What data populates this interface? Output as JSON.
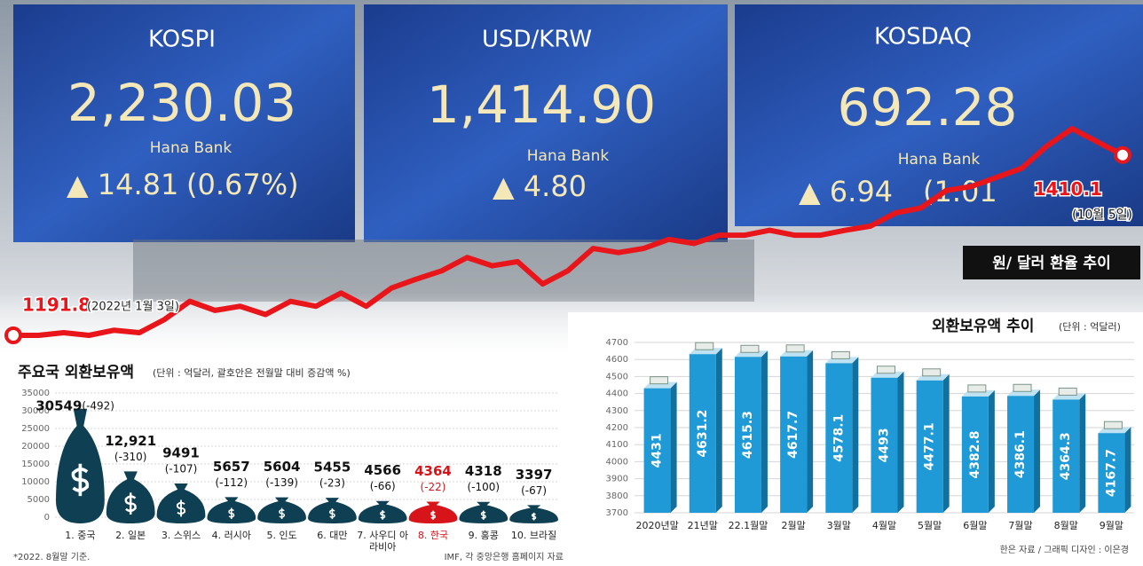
{
  "photo": {
    "screens": [
      {
        "name": "KOSPI",
        "value": "2,230.03",
        "brand": "Hana Bank",
        "change": "▲ 14.81",
        "percent": "(0.67%)"
      },
      {
        "name": "USD/KRW",
        "value": "1,414.90",
        "brand": "Hana Bank",
        "change": "▲ 4.80"
      },
      {
        "name": "KOSDAQ",
        "value": "692.28",
        "brand": "Hana Bank",
        "change": "▲ 6.94",
        "percent": "(1.01"
      }
    ]
  },
  "chart_data": [
    {
      "type": "line",
      "title": "원/ 달러 환율 추이",
      "color": "#e8151b",
      "values": [
        1191.8,
        1191.8,
        1195,
        1191.8,
        1198,
        1195,
        1211,
        1233,
        1222,
        1227,
        1217,
        1233,
        1227,
        1243,
        1227,
        1249,
        1260,
        1270,
        1286,
        1276,
        1281,
        1254,
        1270,
        1297,
        1292,
        1297,
        1308,
        1303,
        1313,
        1313,
        1319,
        1313,
        1313,
        1319,
        1324,
        1340,
        1346,
        1367,
        1372,
        1383,
        1394,
        1421,
        1442,
        1426,
        1410.1
      ],
      "start_label": "(2022년 1월 3일)",
      "end_label": "(10월 5일)"
    },
    {
      "type": "bar",
      "style": "money-bag",
      "title": "주요국 외환보유액",
      "subtitle": "(단위 : 억달러, 괄호안은 전월말 대비 증감액 %)",
      "categories": [
        "1. 중국",
        "2. 일본",
        "3. 스위스",
        "4. 러시아",
        "5. 인도",
        "6. 대만",
        "7. 사우디 아라비아",
        "8. 한국",
        "9. 홍콩",
        "10. 브라질"
      ],
      "values": [
        30549,
        12921,
        9491,
        5657,
        5604,
        5455,
        4566,
        4364,
        4318,
        3397
      ],
      "value_labels": [
        "30549",
        "12,921",
        "9491",
        "5657",
        "5604",
        "5455",
        "4566",
        "4364",
        "4318",
        "3397"
      ],
      "changes": [
        -492,
        -310,
        -107,
        -112,
        -139,
        -23,
        -66,
        -22,
        -100,
        -67
      ],
      "change_labels": [
        "(-492)",
        "(-310)",
        "(-107)",
        "(-112)",
        "(-139)",
        "(-23)",
        "(-66)",
        "(-22)",
        "(-100)",
        "(-67)"
      ],
      "colors": [
        "#0f3f52",
        "#0f3f52",
        "#0f3f52",
        "#0f3f52",
        "#0f3f52",
        "#0f3f52",
        "#0f3f52",
        "#d7141a",
        "#0f3f52",
        "#0f3f52"
      ],
      "ylim": [
        0,
        35000
      ],
      "yticks": [
        0,
        5000,
        10000,
        15000,
        20000,
        25000,
        30000,
        35000
      ],
      "grid": true,
      "footnote": "*2022. 8월말 기준.",
      "source": "IMF, 각 중앙은행 홈페이지 자료"
    },
    {
      "type": "bar",
      "style": "3d",
      "title": "외환보유액 추이",
      "subtitle": "(단위 : 억달러)",
      "categories": [
        "2020년말",
        "21년말",
        "22.1월말",
        "2월말",
        "3월말",
        "4월말",
        "5월말",
        "6월말",
        "7월말",
        "8월말",
        "9월말"
      ],
      "values": [
        4431,
        4631.2,
        4615.3,
        4617.7,
        4578.1,
        4493,
        4477.1,
        4382.8,
        4386.1,
        4364.3,
        4167.7
      ],
      "color": "#1f9ad6",
      "ylim": [
        3700,
        4700
      ],
      "yticks": [
        3700,
        3800,
        3900,
        4000,
        4100,
        4200,
        4300,
        4400,
        4500,
        4600,
        4700
      ],
      "grid": true,
      "source": "한은 자료 / 그래픽 디자인 : 이은경"
    }
  ]
}
